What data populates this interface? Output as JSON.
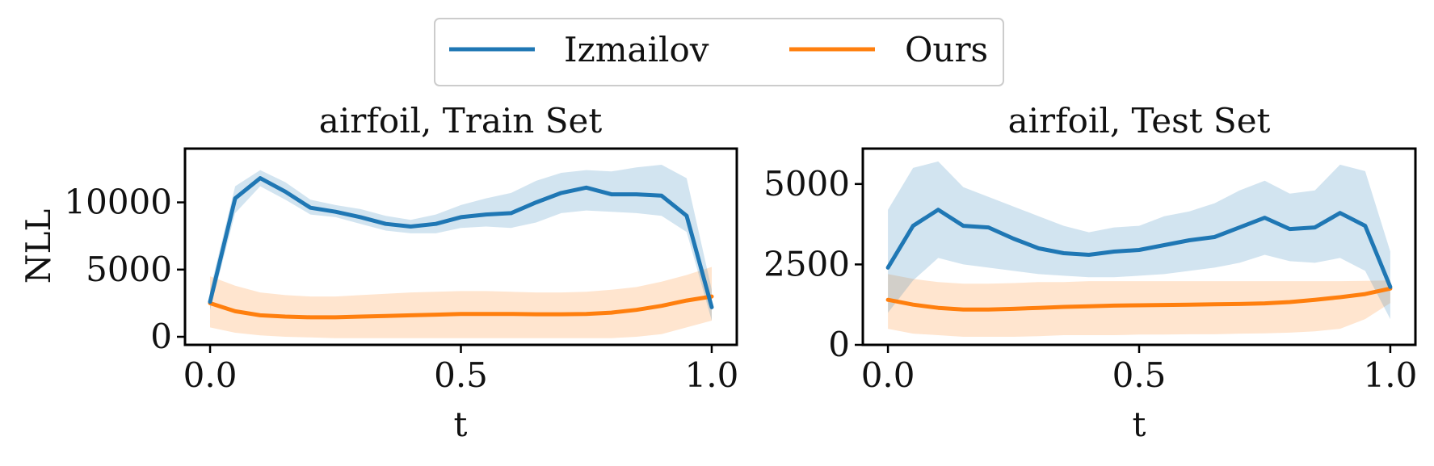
{
  "legend": {
    "entries": [
      {
        "label": "Izmailov",
        "color": "#1f77b4"
      },
      {
        "label": "Ours",
        "color": "#ff7f0e"
      }
    ]
  },
  "chart_data": [
    {
      "type": "line",
      "title": "airfoil, Train Set",
      "xlabel": "t",
      "ylabel": "NLL",
      "xlim": [
        -0.05,
        1.05
      ],
      "ylim": [
        -600,
        14000
      ],
      "xticks": [
        0.0,
        0.5,
        1.0
      ],
      "xtick_labels": [
        "0.0",
        "0.5",
        "1.0"
      ],
      "yticks": [
        0,
        5000,
        10000
      ],
      "ytick_labels": [
        "0",
        "5000",
        "10000"
      ],
      "x": [
        0.0,
        0.05,
        0.1,
        0.15,
        0.2,
        0.25,
        0.3,
        0.35,
        0.4,
        0.45,
        0.5,
        0.55,
        0.6,
        0.65,
        0.7,
        0.75,
        0.8,
        0.85,
        0.9,
        0.95,
        1.0
      ],
      "series": [
        {
          "name": "Izmailov",
          "color": "#1f77b4",
          "mean": [
            2600,
            10300,
            11800,
            10800,
            9600,
            9300,
            8900,
            8400,
            8200,
            8400,
            8900,
            9100,
            9200,
            10000,
            10700,
            11100,
            10600,
            10600,
            10500,
            9000,
            2200
          ],
          "lower": [
            2000,
            9200,
            11200,
            10200,
            9100,
            8900,
            8400,
            7900,
            7700,
            7700,
            8100,
            8200,
            8100,
            8500,
            9200,
            9400,
            9300,
            9200,
            9000,
            7800,
            1200
          ],
          "upper": [
            3500,
            11200,
            12400,
            11500,
            10200,
            9800,
            9500,
            9000,
            8700,
            9100,
            9800,
            10300,
            10700,
            11600,
            12200,
            12400,
            12300,
            12600,
            12800,
            11800,
            3500
          ]
        },
        {
          "name": "Ours",
          "color": "#ff7f0e",
          "mean": [
            2500,
            1900,
            1600,
            1500,
            1450,
            1450,
            1500,
            1550,
            1600,
            1650,
            1700,
            1700,
            1700,
            1680,
            1680,
            1700,
            1800,
            2000,
            2300,
            2700,
            3000
          ],
          "lower": [
            700,
            300,
            100,
            0,
            -50,
            -100,
            -100,
            -100,
            -100,
            -100,
            -100,
            -100,
            -100,
            -100,
            -100,
            -100,
            -100,
            0,
            200,
            700,
            1200
          ],
          "upper": [
            4500,
            3800,
            3300,
            3100,
            3000,
            3000,
            3100,
            3200,
            3300,
            3350,
            3400,
            3400,
            3350,
            3300,
            3300,
            3350,
            3500,
            3700,
            4100,
            4600,
            5200
          ]
        }
      ]
    },
    {
      "type": "line",
      "title": "airfoil, Test Set",
      "xlabel": "t",
      "ylabel": "",
      "xlim": [
        -0.05,
        1.05
      ],
      "ylim": [
        0,
        6100
      ],
      "xticks": [
        0.0,
        0.5,
        1.0
      ],
      "xtick_labels": [
        "0.0",
        "0.5",
        "1.0"
      ],
      "yticks": [
        0,
        2500,
        5000
      ],
      "ytick_labels": [
        "0",
        "2500",
        "5000"
      ],
      "x": [
        0.0,
        0.05,
        0.1,
        0.15,
        0.2,
        0.25,
        0.3,
        0.35,
        0.4,
        0.45,
        0.5,
        0.55,
        0.6,
        0.65,
        0.7,
        0.75,
        0.8,
        0.85,
        0.9,
        0.95,
        1.0
      ],
      "series": [
        {
          "name": "Izmailov",
          "color": "#1f77b4",
          "mean": [
            2400,
            3700,
            4200,
            3700,
            3650,
            3300,
            3000,
            2850,
            2800,
            2900,
            2950,
            3100,
            3250,
            3350,
            3650,
            3950,
            3600,
            3650,
            4100,
            3700,
            1800
          ],
          "lower": [
            1000,
            2000,
            2700,
            2500,
            2400,
            2300,
            2200,
            2150,
            2100,
            2100,
            2150,
            2200,
            2300,
            2400,
            2550,
            2800,
            2600,
            2550,
            2700,
            2300,
            800
          ],
          "upper": [
            4200,
            5500,
            5700,
            4900,
            4600,
            4300,
            4000,
            3700,
            3500,
            3650,
            3700,
            4000,
            4150,
            4400,
            4800,
            5100,
            4700,
            4800,
            5600,
            5400,
            2900
          ]
        },
        {
          "name": "Ours",
          "color": "#ff7f0e",
          "mean": [
            1400,
            1250,
            1150,
            1100,
            1100,
            1120,
            1150,
            1180,
            1200,
            1220,
            1230,
            1240,
            1250,
            1260,
            1270,
            1290,
            1330,
            1400,
            1480,
            1580,
            1750
          ],
          "lower": [
            500,
            350,
            300,
            250,
            250,
            250,
            270,
            300,
            300,
            300,
            320,
            320,
            330,
            330,
            350,
            360,
            380,
            420,
            500,
            800,
            1300
          ],
          "upper": [
            2200,
            2050,
            1950,
            1900,
            1900,
            1920,
            1950,
            1950,
            1980,
            1980,
            1980,
            1980,
            1980,
            1980,
            1980,
            1980,
            1980,
            1980,
            1980,
            1990,
            2000
          ]
        }
      ]
    }
  ]
}
